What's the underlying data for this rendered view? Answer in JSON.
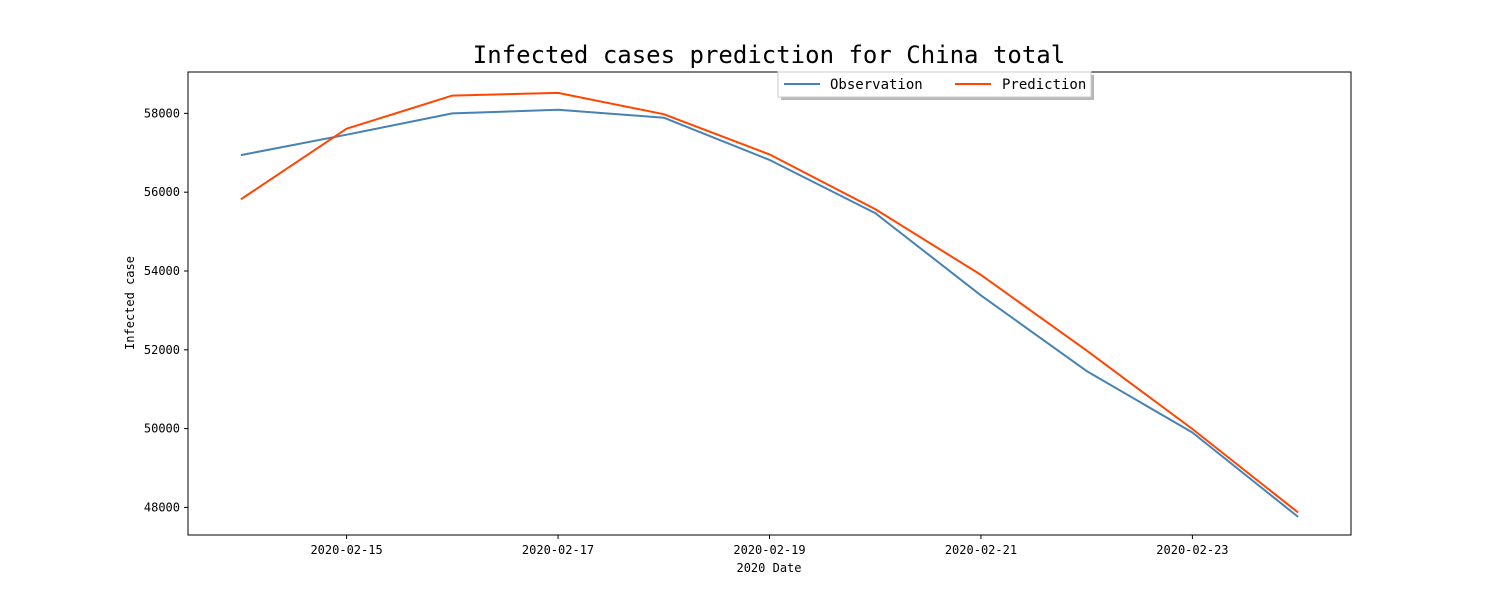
{
  "chart_data": {
    "type": "line",
    "title": "Infected cases prediction for China total",
    "xlabel": "2020 Date",
    "ylabel": "Infected case",
    "x": [
      "2020-02-14",
      "2020-02-15",
      "2020-02-16",
      "2020-02-17",
      "2020-02-18",
      "2020-02-19",
      "2020-02-20",
      "2020-02-21",
      "2020-02-22",
      "2020-02-23",
      "2020-02-24"
    ],
    "x_ticks": [
      "2020-02-15",
      "2020-02-17",
      "2020-02-19",
      "2020-02-21",
      "2020-02-23"
    ],
    "y_ticks": [
      48000,
      50000,
      52000,
      54000,
      56000,
      58000
    ],
    "ylim": [
      47300,
      59050
    ],
    "xlim": [
      "2020-02-13.5",
      "2020-02-24.5"
    ],
    "series": [
      {
        "name": "Observation",
        "color": "#4682b4",
        "values": [
          56940,
          57460,
          58000,
          58090,
          57890,
          56820,
          55470,
          53380,
          51460,
          49900,
          47760
        ]
      },
      {
        "name": "Prediction",
        "color": "#ff4500",
        "values": [
          55820,
          57610,
          58450,
          58520,
          57980,
          56960,
          55570,
          53900,
          51980,
          49990,
          47870
        ]
      }
    ],
    "legend_position": "upper-center",
    "grid": false
  }
}
